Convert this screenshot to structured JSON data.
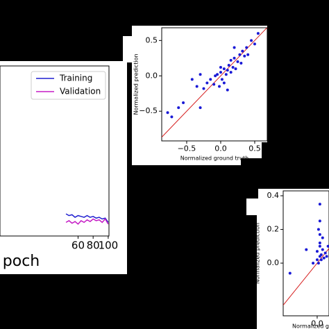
{
  "chart_data": [
    {
      "type": "line",
      "xlabel": "poch",
      "xlim": [
        -43.5,
        101
      ],
      "ylim": [
        0,
        1
      ],
      "xticks": [
        60,
        80,
        100
      ],
      "legend": "upper right",
      "x": [
        44,
        48,
        52,
        56,
        60,
        64,
        68,
        72,
        76,
        80,
        84,
        88,
        92,
        96,
        100
      ],
      "series": [
        {
          "name": "Training",
          "color": "#1f1fd0",
          "values": [
            0.13,
            0.12,
            0.125,
            0.11,
            0.12,
            0.115,
            0.11,
            0.12,
            0.11,
            0.115,
            0.105,
            0.11,
            0.1,
            0.105,
            0.08
          ]
        },
        {
          "name": "Validation",
          "color": "#c51bc5",
          "values": [
            0.08,
            0.09,
            0.075,
            0.085,
            0.07,
            0.09,
            0.08,
            0.095,
            0.085,
            0.1,
            0.09,
            0.095,
            0.08,
            0.1,
            0.07
          ]
        }
      ]
    },
    {
      "type": "scatter",
      "xlabel": "Normalized ground truth",
      "ylabel": "Normalized prediction",
      "color": "#1a1ad6",
      "line_color": "#d62020",
      "xlim": [
        -0.867,
        0.684
      ],
      "ylim": [
        -0.92,
        0.68
      ],
      "xticks": [
        {
          "value": -0.5,
          "label": "−0.5"
        },
        {
          "value": 0,
          "label": "0.0"
        },
        0.5
      ],
      "yticks": [
        {
          "value": -0.5,
          "label": "−0.5"
        },
        {
          "value": 0,
          "label": "0.0"
        },
        0.5
      ],
      "x": [
        -0.78,
        -0.72,
        -0.62,
        -0.55,
        -0.42,
        -0.35,
        -0.3,
        -0.25,
        -0.2,
        -0.15,
        -0.1,
        -0.05,
        0,
        0.02,
        0.05,
        0.08,
        0.1,
        0.12,
        0.15,
        0.18,
        0.2,
        0.22,
        0.25,
        0.28,
        0.3,
        0.32,
        0.35,
        0.38,
        0.4,
        0.45,
        0.5,
        0.55,
        -0.08,
        0.05,
        -0.02,
        0.1,
        -0.3,
        0.2,
        0,
        0.15
      ],
      "y": [
        -0.52,
        -0.58,
        -0.45,
        -0.38,
        -0.05,
        -0.15,
        0.02,
        -0.18,
        -0.1,
        -0.05,
        -0.12,
        0.02,
        0.05,
        -0.05,
        0.1,
        0.02,
        0.08,
        0.15,
        0.05,
        0.12,
        0.25,
        0.1,
        0.2,
        0.3,
        0.18,
        0.35,
        0.28,
        0.4,
        0.3,
        0.5,
        0.45,
        0.6,
        0,
        -0.1,
        -0.15,
        -0.2,
        -0.45,
        0.4,
        0.12,
        0.22
      ]
    },
    {
      "type": "scatter",
      "xlabel": "Normalized grou",
      "ylabel": "Normalized prediction",
      "color": "#1a1ad6",
      "line_color": "#d62020",
      "xlim": [
        -0.25,
        0.087
      ],
      "ylim": [
        -0.313,
        0.429
      ],
      "xticks": [
        {
          "value": 0,
          "label": "0.0"
        }
      ],
      "yticks": [
        {
          "value": 0,
          "label": "0.0"
        },
        0.2,
        0.4
      ],
      "x": [
        -0.2,
        0,
        0,
        0.01,
        0.02,
        0.02,
        0.02,
        0.02,
        0.02,
        0.02,
        0.03,
        0.03,
        0.04,
        0.05,
        0.06,
        -0.08,
        -0.03,
        0.07,
        0.08,
        0.01,
        0.04
      ],
      "y": [
        -0.06,
        0.07,
        0.02,
        0,
        0.04,
        0.1,
        0.17,
        0.25,
        0.35,
        0.12,
        0.05,
        0.02,
        0.08,
        0.03,
        0.06,
        0.08,
        0,
        0.04,
        0.1,
        0.2,
        0.15
      ]
    }
  ]
}
